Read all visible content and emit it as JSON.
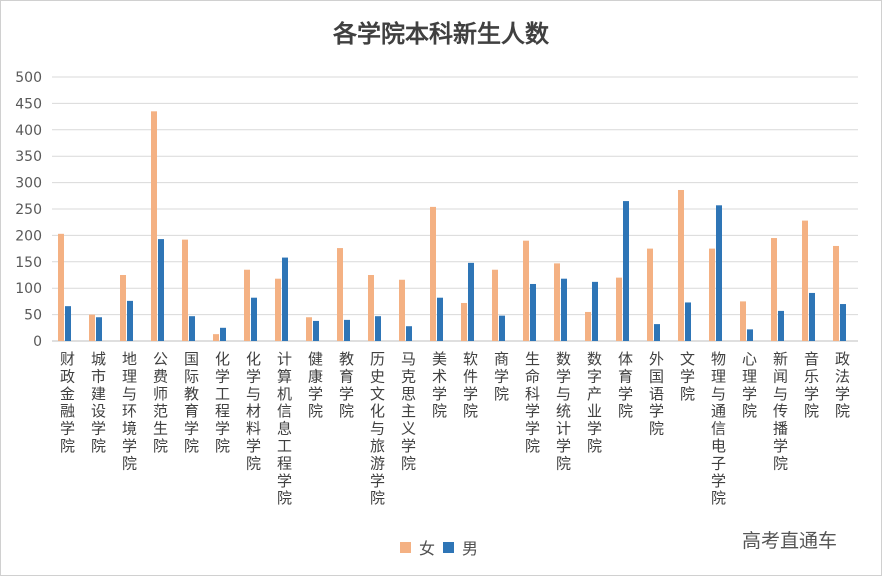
{
  "chart_data": {
    "type": "bar",
    "title": "各学院本科新生人数",
    "categories": [
      "财政金融学院",
      "城市建设学院",
      "地理与环境学院",
      "公费师范生院",
      "国际教育学院",
      "化学工程学院",
      "化学与材料学院",
      "计算机信息工程学院",
      "健康学院",
      "教育学院",
      "历史文化与旅游学院",
      "马克思主义学院",
      "美术学院",
      "软件学院",
      "商学院",
      "生命科学学院",
      "数学与统计学院",
      "数字产业学院",
      "体育学院",
      "外国语学院",
      "文学院",
      "物理与通信电子学院",
      "心理学院",
      "新闻与传播学院",
      "音乐学院",
      "政法学院"
    ],
    "series": [
      {
        "name": "女",
        "color": "#f4b183",
        "values": [
          203,
          50,
          125,
          435,
          192,
          13,
          135,
          118,
          45,
          176,
          125,
          116,
          254,
          72,
          135,
          190,
          147,
          55,
          120,
          175,
          286,
          175,
          75,
          195,
          228,
          180
        ]
      },
      {
        "name": "男",
        "color": "#2e75b6",
        "values": [
          66,
          45,
          76,
          193,
          47,
          25,
          82,
          158,
          38,
          40,
          47,
          28,
          82,
          148,
          48,
          108,
          118,
          112,
          265,
          32,
          73,
          257,
          22,
          57,
          91,
          70
        ]
      }
    ],
    "ylim": [
      0,
      500
    ],
    "yticks": [
      0,
      50,
      100,
      150,
      200,
      250,
      300,
      350,
      400,
      450,
      500
    ],
    "grid": true,
    "legend_position": "bottom"
  },
  "watermark": "高考直通车"
}
